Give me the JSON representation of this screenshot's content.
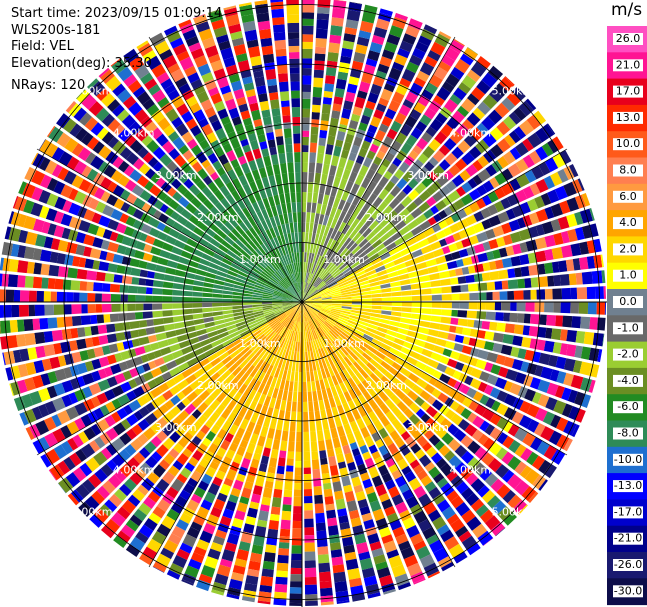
{
  "header": {
    "start_time": "Start time: 2023/09/15 01:09:14",
    "instrument": "WLS200s-181",
    "field": "Field: VEL",
    "elevation": "Elevation(deg): 35.30",
    "nrays": "NRays: 120"
  },
  "colorbar": {
    "unit": "m/s",
    "ticks": [
      "26.0",
      "21.0",
      "17.0",
      "13.0",
      "10.0",
      "8.0",
      "6.0",
      "4.0",
      "2.0",
      "1.0",
      "0.0",
      "-1.0",
      "-2.0",
      "-4.0",
      "-6.0",
      "-8.0",
      "-10.0",
      "-13.0",
      "-17.0",
      "-21.0",
      "-26.0",
      "-30.0"
    ],
    "colors": [
      "#ff4fc2",
      "#ff1493",
      "#e8001c",
      "#ff2a00",
      "#ff5a1a",
      "#ff7f50",
      "#ff9a40",
      "#ffa500",
      "#ffd700",
      "#ffff00",
      "#708090",
      "#696969",
      "#9acd32",
      "#6b8e23",
      "#228b22",
      "#2e8b57",
      "#1e6fd0",
      "#0000ff",
      "#0000cd",
      "#00008b",
      "#191970",
      "#0d0d4a"
    ]
  },
  "chart_data": {
    "type": "ppi",
    "field": "VEL",
    "units": "m/s",
    "nrays": 120,
    "elevation_deg": 35.3,
    "range_rings_km": [
      1.0,
      2.0,
      3.0,
      4.0,
      5.0
    ],
    "range_ring_labels": [
      "1.00km",
      "2.00km",
      "3.00km",
      "4.00km",
      "5.00km"
    ],
    "sector_velocity_mps": [
      {
        "azimuth_from_deg": 270,
        "azimuth_to_deg": 360,
        "velocity": -6.0
      },
      {
        "azimuth_from_deg": 0,
        "azimuth_to_deg": 60,
        "velocity": -1.0
      },
      {
        "azimuth_from_deg": 60,
        "azimuth_to_deg": 120,
        "velocity": 2.0
      },
      {
        "azimuth_from_deg": 120,
        "azimuth_to_deg": 240,
        "velocity": 4.0
      },
      {
        "azimuth_from_deg": 240,
        "azimuth_to_deg": 270,
        "velocity": -2.0
      }
    ]
  }
}
